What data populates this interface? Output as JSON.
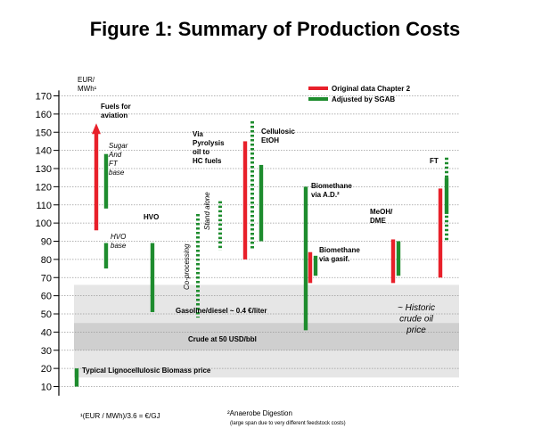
{
  "title": "Figure 1: Summary of Production Costs",
  "chart_data": {
    "type": "bar",
    "y_unit_label": [
      "EUR/",
      "MWh¹"
    ],
    "ylim": [
      5,
      172
    ],
    "yticks": [
      10,
      20,
      30,
      40,
      50,
      60,
      70,
      80,
      90,
      100,
      110,
      120,
      130,
      140,
      150,
      160,
      170
    ],
    "grid": "dotted horizontal lines",
    "legend_position": "top-right",
    "legend": [
      {
        "label": "Original data Chapter 2",
        "color": "#e8202a"
      },
      {
        "label": "Adjusted by SGAB",
        "color": "#1e8c2e"
      }
    ],
    "shaded_bands": [
      {
        "from": 15,
        "to": 66,
        "color": "#e6e6e6"
      },
      {
        "from": 30,
        "to": 45,
        "color": "#cfcfcf"
      }
    ],
    "ranges": [
      {
        "color": "#1e8c2e",
        "style": "solid",
        "low": 10,
        "high": 20
      },
      {
        "color": "#e8202a",
        "style": "solid",
        "low": 96,
        "high": 150,
        "arrow": true
      },
      {
        "color": "#1e8c2e",
        "style": "solid",
        "low": 108,
        "high": 138
      },
      {
        "color": "#1e8c2e",
        "style": "solid",
        "low": 75,
        "high": 89
      },
      {
        "color": "#1e8c2e",
        "style": "solid",
        "low": 51,
        "high": 89
      },
      {
        "color": "#1e8c2e",
        "style": "dotted",
        "low": 48,
        "high": 105
      },
      {
        "color": "#1e8c2e",
        "style": "dotted",
        "low": 85,
        "high": 112
      },
      {
        "color": "#e8202a",
        "style": "solid",
        "low": 80,
        "high": 145
      },
      {
        "color": "#1e8c2e",
        "style": "dotted",
        "low": 86,
        "high": 156
      },
      {
        "color": "#1e8c2e",
        "style": "solid",
        "low": 90,
        "high": 132
      },
      {
        "color": "#1e8c2e",
        "style": "solid",
        "low": 41,
        "high": 120
      },
      {
        "color": "#e8202a",
        "style": "solid",
        "low": 67,
        "high": 84
      },
      {
        "color": "#1e8c2e",
        "style": "solid",
        "low": 71,
        "high": 82
      },
      {
        "color": "#e8202a",
        "style": "solid",
        "low": 67,
        "high": 91
      },
      {
        "color": "#1e8c2e",
        "style": "solid",
        "low": 71,
        "high": 90
      },
      {
        "color": "#e8202a",
        "style": "solid",
        "low": 70,
        "high": 119
      },
      {
        "color": "#1e8c2e",
        "style": "solid",
        "low": 105,
        "high": 125
      },
      {
        "color": "#1e8c2e",
        "style": "dotted",
        "low": 90,
        "high": 136
      }
    ],
    "annotations": [
      {
        "text": "Fuels for aviation"
      },
      {
        "text": "Sugar And FT base"
      },
      {
        "text": "HVO base"
      },
      {
        "text": "HVO"
      },
      {
        "text": "Co-processing"
      },
      {
        "text": "Stand alone"
      },
      {
        "text": "Via Pyrolysis oil to HC fuels"
      },
      {
        "text": "Cellulosic EtOH"
      },
      {
        "text": "Biomethane via A.D.²"
      },
      {
        "text": "Biomethane via gasif."
      },
      {
        "text": "MeOH/ DME"
      },
      {
        "text": "FT"
      },
      {
        "text": "Gasoline/diesel ~ 0.4 €/liter"
      },
      {
        "text": "Crude at 50 USD/bbl"
      },
      {
        "text": "~ Historic crude oil price"
      },
      {
        "text": "Typical Lignocellulosic Biomass price"
      }
    ]
  },
  "footnotes": {
    "left": "¹(EUR / MWh)/3.6 = €/GJ",
    "right": "²Anaerobe Digestion",
    "right_sub": "(large span due to very different feedstock costs)"
  }
}
